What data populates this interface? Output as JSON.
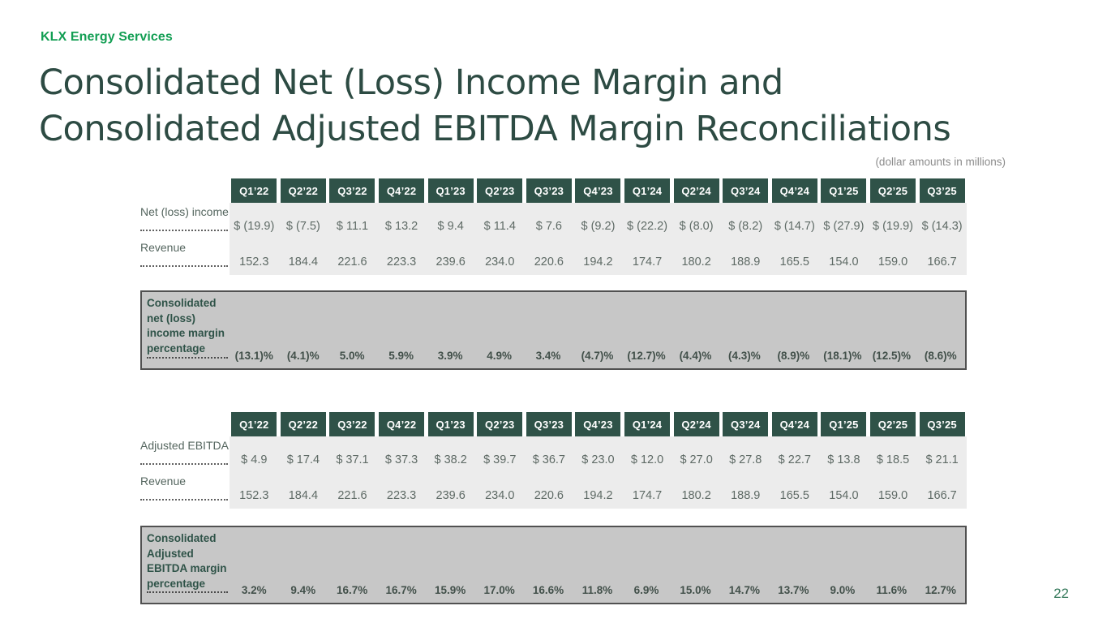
{
  "slide": {
    "brand": "KLX Energy Services",
    "title_line1": "Consolidated Net (Loss) Income Margin and",
    "title_line2": "Consolidated Adjusted EBITDA Margin Reconciliations",
    "note": "(dollar amounts in millions)",
    "page_number": "22"
  },
  "colors": {
    "brand_green": "#129E53",
    "title_green": "#2D4B43",
    "header_cell_green": "#2F5248",
    "body_row_gray": "#ECECEC",
    "band_gray": "#C7C7C7",
    "band_border": "#515151"
  },
  "quarters": [
    "Q1’22",
    "Q2’22",
    "Q3’22",
    "Q4’22",
    "Q1’23",
    "Q2’23",
    "Q3’23",
    "Q4’23",
    "Q1’24",
    "Q2’24",
    "Q3’24",
    "Q4’24",
    "Q1’25",
    "Q2’25",
    "Q3’25"
  ],
  "net_income_table": {
    "rows": [
      {
        "label": "Net (loss) income",
        "values": [
          "$ (19.9)",
          "$ (7.5)",
          "$ 11.1",
          "$ 13.2",
          "$ 9.4",
          "$ 11.4",
          "$ 7.6",
          "$ (9.2)",
          "$ (22.2)",
          "$ (8.0)",
          "$ (8.2)",
          "$ (14.7)",
          "$ (27.9)",
          "$ (19.9)",
          "$ (14.3)"
        ]
      },
      {
        "label": "Revenue",
        "values": [
          "152.3",
          "184.4",
          "221.6",
          "223.3",
          "239.6",
          "234.0",
          "220.6",
          "194.2",
          "174.7",
          "180.2",
          "188.9",
          "165.5",
          "154.0",
          "159.0",
          "166.7"
        ]
      }
    ],
    "margin": {
      "label_lines": [
        "Consolidated",
        "net (loss)",
        "income margin",
        "percentage"
      ],
      "values": [
        "(13.1)%",
        "(4.1)%",
        "5.0%",
        "5.9%",
        "3.9%",
        "4.9%",
        "3.4%",
        "(4.7)%",
        "(12.7)%",
        "(4.4)%",
        "(4.3)%",
        "(8.9)%",
        "(18.1)%",
        "(12.5)%",
        "(8.6)%"
      ]
    }
  },
  "ebitda_table": {
    "rows": [
      {
        "label": "Adjusted EBITDA",
        "values": [
          "$ 4.9",
          "$ 17.4",
          "$ 37.1",
          "$ 37.3",
          "$ 38.2",
          "$ 39.7",
          "$ 36.7",
          "$ 23.0",
          "$ 12.0",
          "$ 27.0",
          "$ 27.8",
          "$ 22.7",
          "$ 13.8",
          "$ 18.5",
          "$ 21.1"
        ]
      },
      {
        "label": "Revenue",
        "values": [
          "152.3",
          "184.4",
          "221.6",
          "223.3",
          "239.6",
          "234.0",
          "220.6",
          "194.2",
          "174.7",
          "180.2",
          "188.9",
          "165.5",
          "154.0",
          "159.0",
          "166.7"
        ]
      }
    ],
    "margin": {
      "label_lines": [
        "Consolidated",
        "Adjusted",
        "EBITDA margin",
        "percentage"
      ],
      "values": [
        "3.2%",
        "9.4%",
        "16.7%",
        "16.7%",
        "15.9%",
        "17.0%",
        "16.6%",
        "11.8%",
        "6.9%",
        "15.0%",
        "14.7%",
        "13.7%",
        "9.0%",
        "11.6%",
        "12.7%"
      ]
    }
  }
}
